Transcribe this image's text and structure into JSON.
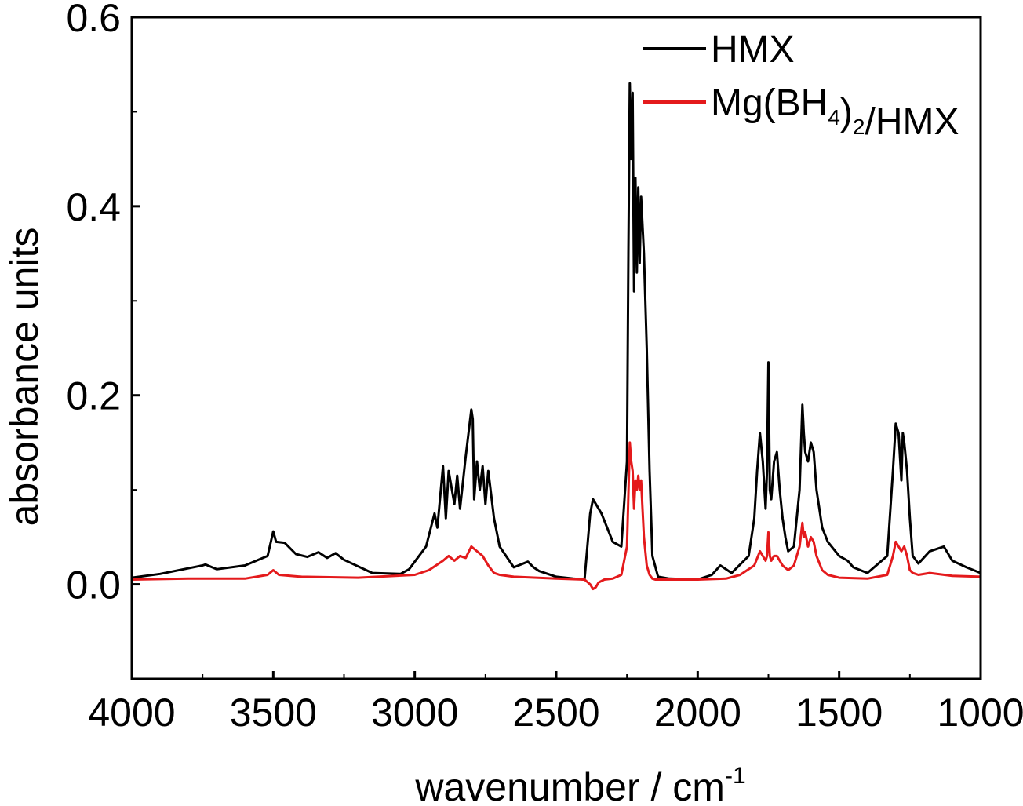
{
  "chart_data": {
    "type": "line",
    "xlabel": "wavenumber / cm",
    "xlabel_superscript": "-1",
    "ylabel": "absorbance units",
    "xlim": [
      4000,
      1000
    ],
    "ylim": [
      -0.1,
      0.6
    ],
    "x_reversed": true,
    "xticks": [
      4000,
      3500,
      3000,
      2500,
      2000,
      1500,
      1000
    ],
    "xtick_labels": [
      "4000",
      "3500",
      "3000",
      "2500",
      "2000",
      "1500",
      "1000"
    ],
    "yticks": [
      0.0,
      0.2,
      0.4,
      0.6
    ],
    "ytick_labels": [
      "0.0",
      "0.2",
      "0.4",
      "0.6"
    ],
    "grid": false,
    "legend_position": "top-right",
    "series": [
      {
        "name": "HMX",
        "legend_parts": [
          {
            "text": "HMX",
            "style": "normal"
          }
        ],
        "color": "#000000",
        "x": [
          4000,
          3900,
          3750,
          3740,
          3700,
          3600,
          3520,
          3500,
          3490,
          3460,
          3420,
          3380,
          3340,
          3310,
          3280,
          3250,
          3150,
          3050,
          3020,
          2960,
          2930,
          2920,
          2900,
          2890,
          2880,
          2860,
          2850,
          2840,
          2820,
          2810,
          2800,
          2795,
          2790,
          2780,
          2770,
          2760,
          2750,
          2740,
          2720,
          2700,
          2650,
          2600,
          2580,
          2560,
          2500,
          2440,
          2400,
          2390,
          2380,
          2370,
          2360,
          2340,
          2320,
          2300,
          2270,
          2250,
          2245,
          2240,
          2235,
          2230,
          2225,
          2220,
          2215,
          2210,
          2205,
          2200,
          2190,
          2180,
          2170,
          2160,
          2140,
          2100,
          2000,
          1950,
          1920,
          1880,
          1860,
          1820,
          1800,
          1790,
          1780,
          1770,
          1760,
          1755,
          1750,
          1745,
          1740,
          1730,
          1720,
          1710,
          1700,
          1690,
          1680,
          1660,
          1640,
          1630,
          1625,
          1620,
          1610,
          1600,
          1590,
          1580,
          1560,
          1540,
          1500,
          1470,
          1450,
          1400,
          1330,
          1310,
          1300,
          1290,
          1280,
          1275,
          1270,
          1260,
          1250,
          1240,
          1220,
          1180,
          1130,
          1100,
          1050,
          1000
        ],
        "y": [
          0.007,
          0.011,
          0.02,
          0.021,
          0.016,
          0.02,
          0.03,
          0.056,
          0.045,
          0.044,
          0.032,
          0.029,
          0.034,
          0.028,
          0.033,
          0.026,
          0.012,
          0.011,
          0.016,
          0.04,
          0.075,
          0.06,
          0.125,
          0.07,
          0.12,
          0.085,
          0.115,
          0.08,
          0.135,
          0.16,
          0.185,
          0.175,
          0.09,
          0.13,
          0.1,
          0.125,
          0.085,
          0.12,
          0.07,
          0.04,
          0.018,
          0.024,
          0.018,
          0.014,
          0.008,
          0.006,
          0.005,
          0.04,
          0.075,
          0.09,
          0.085,
          0.075,
          0.06,
          0.045,
          0.04,
          0.13,
          0.35,
          0.53,
          0.45,
          0.52,
          0.31,
          0.43,
          0.33,
          0.42,
          0.34,
          0.41,
          0.35,
          0.25,
          0.12,
          0.03,
          0.008,
          0.006,
          0.005,
          0.01,
          0.02,
          0.012,
          0.018,
          0.03,
          0.07,
          0.12,
          0.16,
          0.13,
          0.08,
          0.12,
          0.235,
          0.1,
          0.09,
          0.13,
          0.14,
          0.1,
          0.07,
          0.05,
          0.035,
          0.04,
          0.1,
          0.19,
          0.16,
          0.14,
          0.13,
          0.15,
          0.14,
          0.1,
          0.06,
          0.045,
          0.03,
          0.025,
          0.018,
          0.012,
          0.03,
          0.12,
          0.17,
          0.16,
          0.11,
          0.16,
          0.15,
          0.12,
          0.07,
          0.03,
          0.022,
          0.035,
          0.04,
          0.025,
          0.018,
          0.012
        ]
      },
      {
        "name": "Mg(BH4)2/HMX",
        "legend_parts": [
          {
            "text": "Mg(BH",
            "style": "normal"
          },
          {
            "text": "4",
            "style": "sub"
          },
          {
            "text": ")",
            "style": "normal"
          },
          {
            "text": "2",
            "style": "sub"
          },
          {
            "text": "/HMX",
            "style": "normal"
          }
        ],
        "color": "#e41a1c",
        "x": [
          4000,
          3800,
          3600,
          3520,
          3500,
          3480,
          3400,
          3200,
          3000,
          2950,
          2900,
          2880,
          2860,
          2840,
          2820,
          2800,
          2780,
          2760,
          2740,
          2720,
          2700,
          2650,
          2500,
          2400,
          2380,
          2370,
          2360,
          2350,
          2330,
          2300,
          2270,
          2250,
          2240,
          2235,
          2230,
          2225,
          2220,
          2215,
          2210,
          2205,
          2200,
          2195,
          2190,
          2180,
          2170,
          2160,
          2150,
          2100,
          2000,
          1900,
          1850,
          1800,
          1780,
          1770,
          1760,
          1755,
          1750,
          1745,
          1740,
          1730,
          1720,
          1700,
          1680,
          1660,
          1640,
          1630,
          1625,
          1620,
          1610,
          1600,
          1590,
          1580,
          1560,
          1540,
          1500,
          1400,
          1330,
          1310,
          1300,
          1290,
          1280,
          1270,
          1260,
          1250,
          1240,
          1220,
          1180,
          1100,
          1000
        ],
        "y": [
          0.005,
          0.006,
          0.006,
          0.01,
          0.015,
          0.01,
          0.008,
          0.007,
          0.01,
          0.015,
          0.025,
          0.03,
          0.025,
          0.03,
          0.028,
          0.04,
          0.035,
          0.03,
          0.02,
          0.012,
          0.01,
          0.008,
          0.006,
          0.005,
          0.0,
          -0.005,
          -0.003,
          0.002,
          0.005,
          0.006,
          0.01,
          0.04,
          0.15,
          0.13,
          0.12,
          0.08,
          0.11,
          0.1,
          0.115,
          0.1,
          0.11,
          0.08,
          0.05,
          0.02,
          0.01,
          0.006,
          0.005,
          0.005,
          0.005,
          0.006,
          0.01,
          0.02,
          0.035,
          0.03,
          0.025,
          0.03,
          0.055,
          0.03,
          0.025,
          0.03,
          0.03,
          0.02,
          0.015,
          0.02,
          0.04,
          0.065,
          0.05,
          0.055,
          0.04,
          0.05,
          0.045,
          0.03,
          0.015,
          0.01,
          0.007,
          0.006,
          0.01,
          0.03,
          0.045,
          0.04,
          0.035,
          0.04,
          0.03,
          0.015,
          0.012,
          0.01,
          0.012,
          0.009,
          0.008
        ]
      }
    ]
  },
  "colors": {
    "axis": "#000000",
    "background": "#ffffff",
    "hmx_line": "#000000",
    "mgbh4_line": "#e41a1c"
  }
}
